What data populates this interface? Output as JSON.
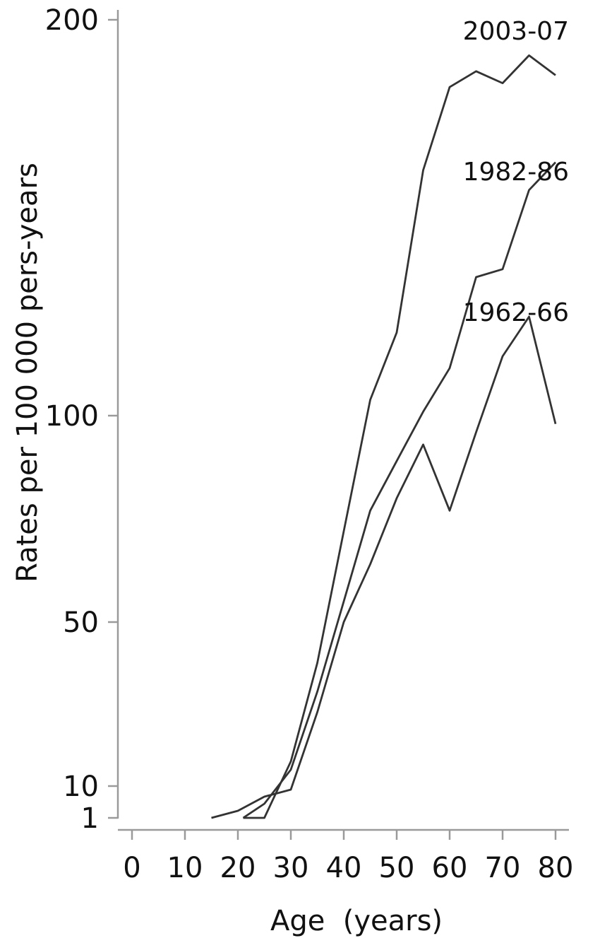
{
  "chart_data": {
    "type": "line",
    "title": "",
    "xlabel": "Age  (years)",
    "ylabel": "Rates per 100 000 pers-years",
    "xlim": [
      0,
      80
    ],
    "ylim": [
      1,
      200
    ],
    "y_scale": "nonlinear (ticks 1, 10, 50, 100, 200)",
    "x_ticks": [
      0,
      10,
      20,
      30,
      40,
      50,
      60,
      70,
      80
    ],
    "y_ticks": [
      1,
      10,
      50,
      100,
      200
    ],
    "grid": false,
    "legend": "none (series labelled directly at line ends)",
    "series": [
      {
        "name": "2003-07",
        "x": [
          21,
          25,
          30,
          35,
          40,
          45,
          50,
          55,
          60,
          65,
          70,
          75,
          80
        ],
        "y": [
          1,
          1,
          16,
          40,
          72,
          104,
          121,
          162,
          183,
          187,
          184,
          191,
          186
        ]
      },
      {
        "name": "1982-86",
        "x": [
          21,
          25,
          30,
          35,
          40,
          45,
          50,
          55,
          60,
          65,
          70,
          75,
          80
        ],
        "y": [
          1,
          5,
          14,
          33,
          55,
          77,
          89,
          101,
          112,
          135,
          137,
          157,
          164
        ]
      },
      {
        "name": "1962-66",
        "x": [
          15,
          20,
          25,
          30,
          35,
          40,
          45,
          50,
          55,
          60,
          65,
          70,
          75,
          80
        ],
        "y": [
          1,
          3,
          7,
          9,
          28,
          50,
          64,
          80,
          93,
          77,
          96,
          115,
          125,
          98
        ]
      }
    ]
  }
}
